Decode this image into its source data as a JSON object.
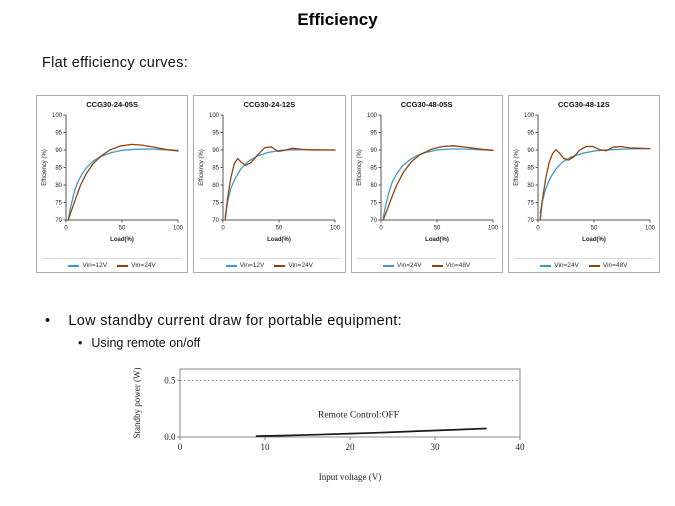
{
  "slide": {
    "title": "Efficiency",
    "subtitle": "Flat efficiency curves:",
    "bullet_glyph": "•",
    "bullet1": "Low standby current draw for portable equipment:",
    "bullet2": "Using remote on/off"
  },
  "colors": {
    "blue": "#3D9BC6",
    "brown": "#97410C",
    "black": "#1a1a1a"
  },
  "chart_data": [
    {
      "type": "line",
      "title": "CCG30-24-05S",
      "xlabel": "Load(%)",
      "ylabel": "Efficiency (%)",
      "xlim": [
        0,
        100
      ],
      "ylim": [
        70,
        100
      ],
      "xticks": [
        0,
        50,
        100
      ],
      "yticks": [
        70,
        75,
        80,
        85,
        90,
        95,
        100
      ],
      "legend_position": "bottom",
      "series": [
        {
          "name": "Vin=12V",
          "color": "#3D9BC6",
          "points": [
            [
              2,
              70
            ],
            [
              4,
              73.5
            ],
            [
              7,
              77.5
            ],
            [
              10,
              80.5
            ],
            [
              14,
              83
            ],
            [
              19,
              85.2
            ],
            [
              25,
              87
            ],
            [
              32,
              88.3
            ],
            [
              40,
              89.2
            ],
            [
              50,
              89.9
            ],
            [
              62,
              90.2
            ],
            [
              75,
              90.3
            ],
            [
              88,
              90.1
            ],
            [
              100,
              89.9
            ]
          ]
        },
        {
          "name": "Vin=24V",
          "color": "#97410C",
          "points": [
            [
              2,
              70
            ],
            [
              5,
              72.8
            ],
            [
              9,
              76.5
            ],
            [
              13,
              80
            ],
            [
              18,
              83.2
            ],
            [
              24,
              86
            ],
            [
              31,
              88.2
            ],
            [
              39,
              90
            ],
            [
              48,
              91.1
            ],
            [
              58,
              91.6
            ],
            [
              68,
              91.4
            ],
            [
              80,
              90.7
            ],
            [
              90,
              90.1
            ],
            [
              100,
              89.7
            ]
          ]
        }
      ]
    },
    {
      "type": "line",
      "title": "CCG30-24-12S",
      "xlabel": "Load(%)",
      "ylabel": "Efficiency (%)",
      "xlim": [
        0,
        100
      ],
      "ylim": [
        70,
        100
      ],
      "xticks": [
        0,
        50,
        100
      ],
      "yticks": [
        70,
        75,
        80,
        85,
        90,
        95,
        100
      ],
      "legend_position": "bottom",
      "series": [
        {
          "name": "Vin=12V",
          "color": "#3D9BC6",
          "points": [
            [
              2,
              71
            ],
            [
              4,
              75
            ],
            [
              7,
              79
            ],
            [
              11,
              82
            ],
            [
              16,
              84.6
            ],
            [
              22,
              86.6
            ],
            [
              30,
              88.2
            ],
            [
              40,
              89.3
            ],
            [
              52,
              89.9
            ],
            [
              65,
              90.1
            ],
            [
              80,
              90.1
            ],
            [
              100,
              90
            ]
          ]
        },
        {
          "name": "Vin=24V",
          "color": "#97410C",
          "points": [
            [
              2,
              70
            ],
            [
              4,
              76
            ],
            [
              7,
              82
            ],
            [
              10,
              86
            ],
            [
              13,
              87.6
            ],
            [
              16,
              86.6
            ],
            [
              20,
              85.6
            ],
            [
              25,
              86.4
            ],
            [
              31,
              88.6
            ],
            [
              37,
              90.6
            ],
            [
              43,
              90.9
            ],
            [
              49,
              89.6
            ],
            [
              55,
              89.9
            ],
            [
              62,
              90.5
            ],
            [
              70,
              90.2
            ],
            [
              80,
              90
            ],
            [
              100,
              90
            ]
          ]
        }
      ]
    },
    {
      "type": "line",
      "title": "CCG30-48-05S",
      "xlabel": "Load(%)",
      "ylabel": "Efficiency (%)",
      "xlim": [
        0,
        100
      ],
      "ylim": [
        70,
        100
      ],
      "xticks": [
        0,
        50,
        100
      ],
      "yticks": [
        70,
        75,
        80,
        85,
        90,
        95,
        100
      ],
      "legend_position": "bottom",
      "series": [
        {
          "name": "Vin=24V",
          "color": "#3D9BC6",
          "points": [
            [
              2,
              70.5
            ],
            [
              4,
              74
            ],
            [
              7,
              77.8
            ],
            [
              10,
              80.8
            ],
            [
              14,
              83.2
            ],
            [
              19,
              85.4
            ],
            [
              25,
              87
            ],
            [
              32,
              88.4
            ],
            [
              40,
              89.3
            ],
            [
              50,
              90
            ],
            [
              62,
              90.3
            ],
            [
              75,
              90.3
            ],
            [
              88,
              90.1
            ],
            [
              100,
              89.9
            ]
          ]
        },
        {
          "name": "Vin=48V",
          "color": "#97410C",
          "points": [
            [
              2,
              70
            ],
            [
              5,
              72.5
            ],
            [
              9,
              76
            ],
            [
              14,
              80
            ],
            [
              20,
              83.6
            ],
            [
              27,
              86.6
            ],
            [
              35,
              88.7
            ],
            [
              45,
              90.2
            ],
            [
              55,
              91
            ],
            [
              65,
              91.2
            ],
            [
              78,
              90.7
            ],
            [
              90,
              90.2
            ],
            [
              100,
              89.9
            ]
          ]
        }
      ]
    },
    {
      "type": "line",
      "title": "CCG30-48-12S",
      "xlabel": "Load(%)",
      "ylabel": "Efficiency (%)",
      "xlim": [
        0,
        100
      ],
      "ylim": [
        70,
        100
      ],
      "xticks": [
        0,
        50,
        100
      ],
      "yticks": [
        70,
        75,
        80,
        85,
        90,
        95,
        100
      ],
      "legend_position": "bottom",
      "series": [
        {
          "name": "Vin=24V",
          "color": "#3D9BC6",
          "points": [
            [
              2,
              72
            ],
            [
              4,
              75.5
            ],
            [
              7,
              79
            ],
            [
              11,
              82
            ],
            [
              16,
              84.6
            ],
            [
              22,
              86.6
            ],
            [
              30,
              88.1
            ],
            [
              40,
              89.1
            ],
            [
              52,
              89.8
            ],
            [
              65,
              90.1
            ],
            [
              80,
              90.3
            ],
            [
              100,
              90.4
            ]
          ]
        },
        {
          "name": "Vin=48V",
          "color": "#97410C",
          "points": [
            [
              2,
              70
            ],
            [
              4,
              76
            ],
            [
              7,
              82
            ],
            [
              10,
              86.5
            ],
            [
              13,
              89
            ],
            [
              16,
              90.1
            ],
            [
              19,
              89.2
            ],
            [
              23,
              87.6
            ],
            [
              27,
              87.1
            ],
            [
              32,
              88
            ],
            [
              37,
              89.9
            ],
            [
              43,
              91
            ],
            [
              49,
              91
            ],
            [
              55,
              90.1
            ],
            [
              61,
              89.8
            ],
            [
              67,
              90.8
            ],
            [
              74,
              91
            ],
            [
              82,
              90.6
            ],
            [
              100,
              90.4
            ]
          ]
        }
      ]
    },
    {
      "type": "line",
      "title": "",
      "xlabel": "Input voltage (V)",
      "ylabel": "Standby power (W)",
      "xlim": [
        0,
        40
      ],
      "ylim": [
        0,
        0.6
      ],
      "xticks": [
        0,
        10,
        20,
        30,
        40
      ],
      "yticks": [
        0,
        0.5
      ],
      "ytick_format": "1dp",
      "grid_y": [
        0.5
      ],
      "box": true,
      "annotation": {
        "text": "Remote Control:OFF",
        "x": 21,
        "y": 0.17
      },
      "series": [
        {
          "name": "standby-power",
          "color": "#1a1a1a",
          "points": [
            [
              9,
              0.008
            ],
            [
              12,
              0.012
            ],
            [
              16,
              0.02
            ],
            [
              20,
              0.03
            ],
            [
              24,
              0.04
            ],
            [
              28,
              0.052
            ],
            [
              32,
              0.063
            ],
            [
              36,
              0.075
            ]
          ]
        }
      ]
    }
  ]
}
